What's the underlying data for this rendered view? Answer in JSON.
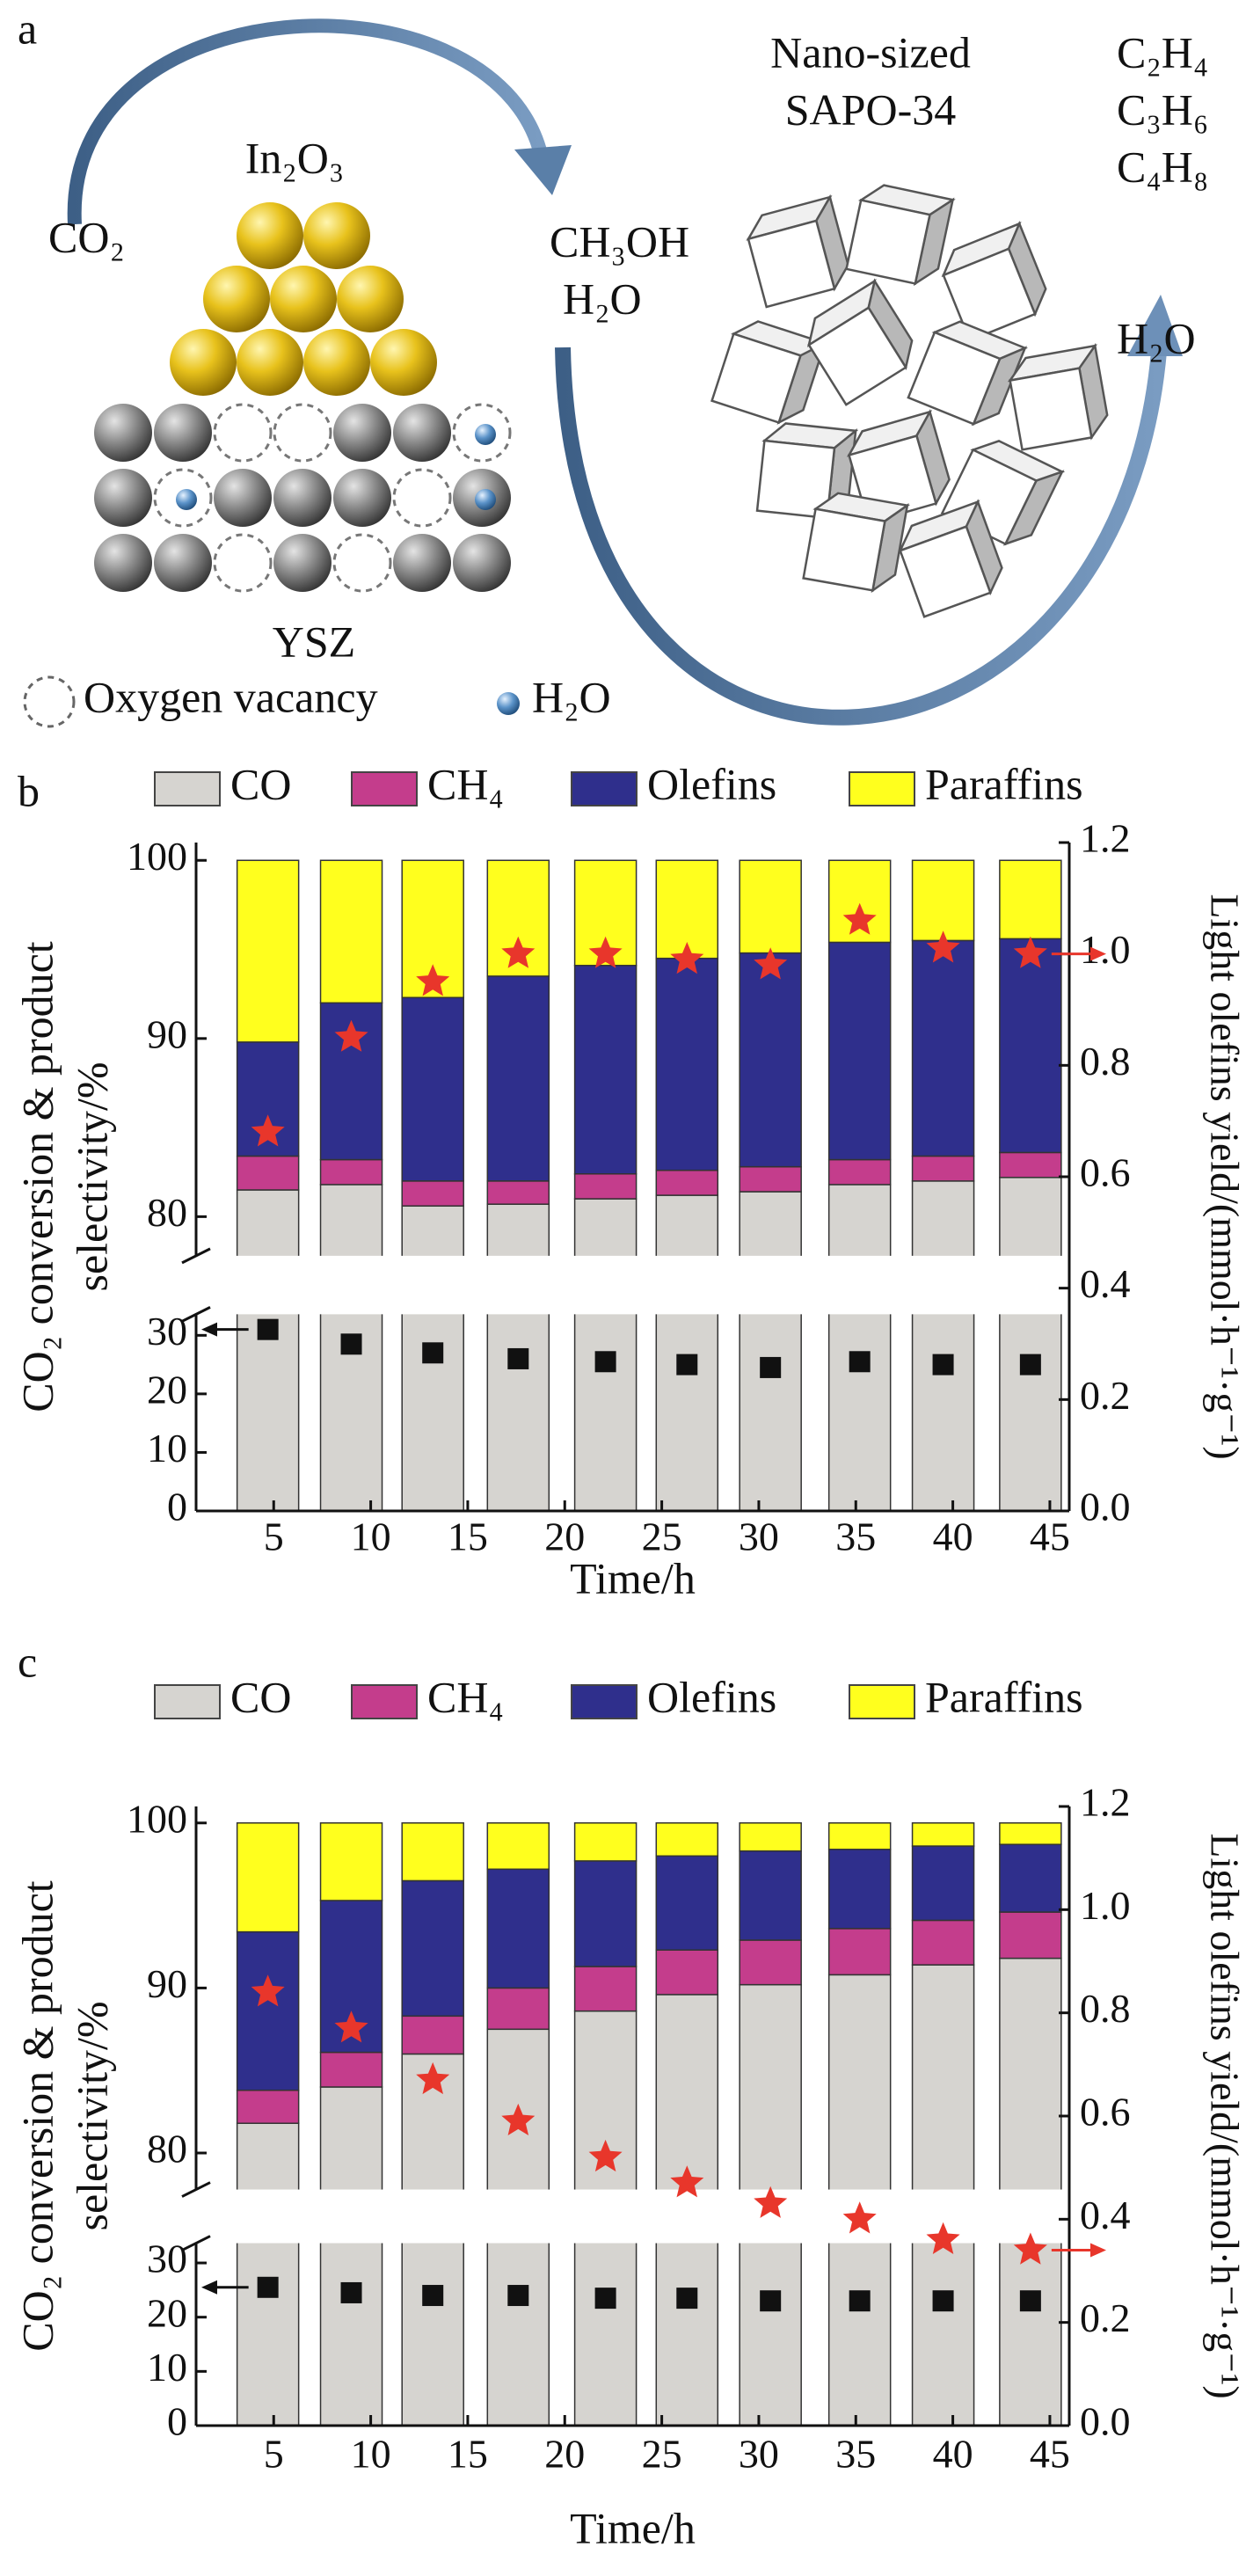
{
  "schematic": {
    "panel_label": "a",
    "co2": "CO₂",
    "catalyst": "In₂O₃",
    "intermediates": [
      "CH₃OH",
      "H₂O"
    ],
    "zeolite": [
      "Nano-sized",
      "SAPO-34"
    ],
    "products": [
      "C₂H₄",
      "C₃H₆",
      "C₄H₈"
    ],
    "byproduct": "H₂O",
    "support": "YSZ",
    "legend": [
      "Oxygen vacancy",
      "H₂O"
    ]
  },
  "chart_data": [
    {
      "type": "bar",
      "stacked": true,
      "panel_label": "b",
      "x": [
        4.7,
        9,
        13.2,
        17.6,
        22.1,
        26.3,
        30.6,
        35.2,
        39.5,
        44
      ],
      "xlim": [
        1,
        46
      ],
      "xticks": [
        5,
        10,
        15,
        20,
        25,
        30,
        35,
        40,
        45
      ],
      "x_label": "Time/h",
      "y_label": [
        "CO₂ conversion & product",
        "selectivity/%"
      ],
      "y2_label": "Light olefins yield/(mmol·h⁻¹·g⁻¹)",
      "ylim": [
        0,
        101
      ],
      "ybreak": [
        33,
        78
      ],
      "yticks": [
        0,
        10,
        20,
        30,
        80,
        90,
        100
      ],
      "y2lim": [
        0,
        1.2
      ],
      "y2ticks": [
        {
          "value": 0,
          "label": "0.0"
        },
        0.2,
        0.4,
        0.6,
        0.8,
        {
          "value": 1,
          "label": "1.0"
        },
        1.2
      ],
      "series": [
        {
          "name": "CO",
          "color": "#d6d4d0",
          "values": [
            81.5,
            81.8,
            80.6,
            80.7,
            81.0,
            81.2,
            81.4,
            81.8,
            82.0,
            82.2
          ]
        },
        {
          "name": "CH₄",
          "color": "#c43d8c",
          "values": [
            1.9,
            1.4,
            1.4,
            1.3,
            1.4,
            1.4,
            1.4,
            1.4,
            1.4,
            1.4
          ]
        },
        {
          "name": "Olefins",
          "color": "#2f2f8c",
          "values": [
            6.4,
            8.8,
            10.3,
            11.5,
            11.7,
            11.9,
            12.0,
            12.2,
            12.1,
            12.0
          ]
        },
        {
          "name": "Paraffins",
          "color": "#ffff1e",
          "values": [
            10.2,
            8.0,
            7.7,
            6.5,
            5.9,
            5.5,
            5.2,
            4.6,
            4.5,
            4.4
          ]
        }
      ],
      "markers": [
        {
          "marker": "square",
          "color": "#111111",
          "values": [
            31,
            28.5,
            27,
            26,
            25.5,
            25,
            24.5,
            25.5,
            25,
            25
          ]
        },
        {
          "marker": "star",
          "color": "#e8362b",
          "axis": "y2",
          "values": [
            0.68,
            0.85,
            0.95,
            1.0,
            1.0,
            0.99,
            0.98,
            1.06,
            1.01,
            1.0
          ]
        }
      ]
    },
    {
      "type": "bar",
      "stacked": true,
      "panel_label": "c",
      "x": [
        4.7,
        9,
        13.2,
        17.6,
        22.1,
        26.3,
        30.6,
        35.2,
        39.5,
        44
      ],
      "xlim": [
        1,
        46
      ],
      "xticks": [
        5,
        10,
        15,
        20,
        25,
        30,
        35,
        40,
        45
      ],
      "x_label": "Time/h",
      "y_label": [
        "CO₂ conversion & product",
        "selectivity/%"
      ],
      "y2_label": "Light olefins yield/(mmol·h⁻¹·g⁻¹)",
      "ylim": [
        0,
        101
      ],
      "ybreak": [
        33,
        78
      ],
      "yticks": [
        0,
        10,
        20,
        30,
        80,
        90,
        100
      ],
      "y2lim": [
        0,
        1.2
      ],
      "y2ticks": [
        {
          "value": 0,
          "label": "0.0"
        },
        0.2,
        0.4,
        0.6,
        0.8,
        {
          "value": 1,
          "label": "1.0"
        },
        1.2
      ],
      "series": [
        {
          "name": "CO",
          "color": "#d6d4d0",
          "values": [
            81.8,
            84.0,
            86.0,
            87.5,
            88.6,
            89.6,
            90.2,
            90.8,
            91.4,
            91.8
          ]
        },
        {
          "name": "CH₄",
          "color": "#c43d8c",
          "values": [
            2.0,
            2.1,
            2.3,
            2.5,
            2.7,
            2.7,
            2.7,
            2.8,
            2.7,
            2.8
          ]
        },
        {
          "name": "Olefins",
          "color": "#2f2f8c",
          "values": [
            9.6,
            9.2,
            8.2,
            7.2,
            6.4,
            5.7,
            5.4,
            4.8,
            4.5,
            4.1
          ]
        },
        {
          "name": "Paraffins",
          "color": "#ffff1e",
          "values": [
            6.6,
            4.7,
            3.5,
            2.8,
            2.3,
            2.0,
            1.7,
            1.6,
            1.4,
            1.3
          ]
        }
      ],
      "markers": [
        {
          "marker": "square",
          "color": "#111111",
          "values": [
            25.5,
            24.5,
            24,
            24,
            23.5,
            23.5,
            23,
            23,
            23,
            23
          ]
        },
        {
          "marker": "star",
          "color": "#e8362b",
          "axis": "y2",
          "values": [
            0.84,
            0.77,
            0.67,
            0.59,
            0.52,
            0.47,
            0.43,
            0.4,
            0.36,
            0.34
          ]
        }
      ]
    }
  ]
}
